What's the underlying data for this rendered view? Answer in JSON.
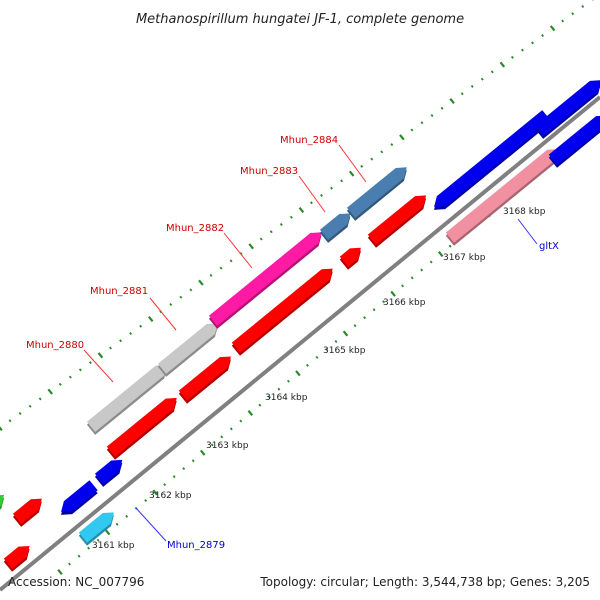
{
  "title": "Methanospirillum hungatei JF-1, complete genome",
  "footer": {
    "accession": "Accession: NC_007796",
    "summary": "Topology: circular; Length: 3,544,738 bp; Genes: 3,205"
  },
  "scale_labels": [
    "3161 kbp",
    "3162 kbp",
    "3163 kbp",
    "3164 kbp",
    "3165 kbp",
    "3166 kbp",
    "3167 kbp",
    "3168 kbp"
  ],
  "gene_labels": {
    "mhun_2880": "Mhun_2880",
    "mhun_2881": "Mhun_2881",
    "mhun_2882": "Mhun_2882",
    "mhun_2883": "Mhun_2883",
    "mhun_2884": "Mhun_2884",
    "mhun_2879": "Mhun_2879",
    "gltx": "gltX"
  },
  "colors": {
    "red": "#ff0000",
    "blue": "#0000ee",
    "steel_blue": "#4a7eb0",
    "pink": "#f090a0",
    "magenta": "#ff1aa5",
    "gray": "#c8c8c8",
    "cyan": "#33c8f0",
    "green": "#33cc33",
    "dot_green": "#2a8a2a",
    "backbone": "#808080"
  }
}
